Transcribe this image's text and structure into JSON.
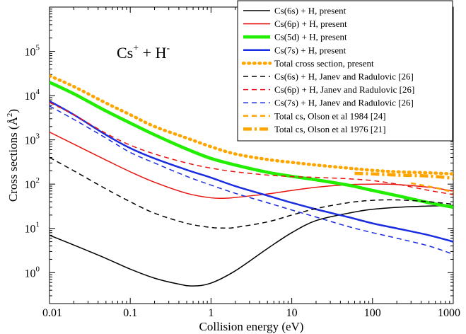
{
  "chart_data": {
    "type": "line",
    "title": "Cs⁺ + H⁻",
    "title_parts": {
      "base1": "Cs",
      "sup1": "+",
      "base2": " + H",
      "sup2": "-"
    },
    "xlabel": "Collision energy (eV)",
    "ylabel": "Cross sections (Å²)",
    "ylabel_parts": {
      "base": "Cross sections (Å",
      "sup": "2",
      "close": ")"
    },
    "xscale": "log",
    "yscale": "log",
    "xlim": [
      0.01,
      1000
    ],
    "ylim": [
      0.2,
      1000000
    ],
    "grid": false,
    "legend_position": "top-right",
    "x_ticks": [
      {
        "value": 0.01,
        "label": "0.01"
      },
      {
        "value": 0.1,
        "label": "0.1"
      },
      {
        "value": 1,
        "label": "1"
      },
      {
        "value": 10,
        "label": "10"
      },
      {
        "value": 100,
        "label": "100"
      },
      {
        "value": 1000,
        "label": "1000"
      }
    ],
    "y_ticks": [
      {
        "value": 1,
        "base": "10",
        "exp": "0"
      },
      {
        "value": 10,
        "base": "10",
        "exp": "1"
      },
      {
        "value": 100,
        "base": "10",
        "exp": "2"
      },
      {
        "value": 1000,
        "base": "10",
        "exp": "3"
      },
      {
        "value": 10000,
        "base": "10",
        "exp": "4"
      },
      {
        "value": 100000,
        "base": "10",
        "exp": "5"
      }
    ],
    "series": [
      {
        "name": "Cs(6s) + H, present",
        "color": "#000000",
        "dash": "solid",
        "width": "thin",
        "x": [
          0.01,
          0.02,
          0.05,
          0.1,
          0.2,
          0.4,
          0.6,
          1,
          2,
          5,
          10,
          20,
          50,
          100,
          300,
          1000
        ],
        "y": [
          7,
          4.2,
          2.1,
          1.2,
          0.75,
          0.55,
          0.5,
          0.58,
          1.1,
          3.5,
          8,
          15,
          22,
          27,
          31,
          33
        ]
      },
      {
        "name": "Cs(6p) + H, present",
        "color": "#e8140f",
        "dash": "solid",
        "width": "thin",
        "x": [
          0.01,
          0.02,
          0.05,
          0.1,
          0.2,
          0.5,
          1,
          1.5,
          2,
          5,
          10,
          20,
          50,
          100,
          200,
          500,
          1000
        ],
        "y": [
          1500,
          800,
          350,
          190,
          110,
          62,
          49,
          48,
          50,
          60,
          72,
          85,
          97,
          100,
          98,
          85,
          70
        ]
      },
      {
        "name": "Cs(5d) + H, present",
        "color": "#22ee00",
        "dash": "solid",
        "width": "thick",
        "x": [
          0.01,
          0.02,
          0.05,
          0.1,
          0.2,
          0.5,
          1,
          2,
          5,
          10,
          20,
          50,
          100,
          200,
          500,
          1000
        ],
        "y": [
          20000,
          11000,
          4500,
          2400,
          1300,
          620,
          380,
          270,
          185,
          150,
          125,
          95,
          72,
          55,
          38,
          30
        ]
      },
      {
        "name": "Cs(7s) + H, present",
        "color": "#1a2ce0",
        "dash": "solid",
        "width": "medium",
        "x": [
          0.01,
          0.02,
          0.05,
          0.1,
          0.2,
          0.5,
          1,
          2,
          5,
          10,
          20,
          50,
          100,
          200,
          500,
          1000
        ],
        "y": [
          7500,
          3700,
          1300,
          650,
          380,
          210,
          140,
          90,
          55,
          38,
          27,
          18,
          13,
          10,
          7,
          5
        ]
      },
      {
        "name": "Total cross section, present",
        "color": "#ffa500",
        "dash": "dotted",
        "width": "thick",
        "x": [
          0.01,
          0.02,
          0.05,
          0.1,
          0.2,
          0.5,
          1,
          2,
          5,
          10,
          20,
          50,
          100,
          200,
          500,
          1000
        ],
        "y": [
          28000,
          16000,
          6800,
          3700,
          2000,
          1100,
          700,
          480,
          360,
          310,
          270,
          230,
          205,
          190,
          180,
          170
        ]
      },
      {
        "name": "Cs(6s) + H, Janev and Radulovic [26]",
        "color": "#000000",
        "dash": "dashed",
        "width": "thin",
        "x": [
          0.01,
          0.02,
          0.05,
          0.1,
          0.2,
          0.5,
          1,
          1.5,
          2,
          5,
          10,
          20,
          50,
          100,
          200,
          500,
          1000
        ],
        "y": [
          400,
          200,
          78,
          40,
          22,
          13,
          10.5,
          10.2,
          10.5,
          14,
          20,
          28,
          38,
          43,
          44,
          40,
          35
        ]
      },
      {
        "name": "Cs(6p) + H, Janev and Radulovic [26]",
        "color": "#e8140f",
        "dash": "dashed",
        "width": "thin",
        "x": [
          0.01,
          0.02,
          0.05,
          0.1,
          0.2,
          0.5,
          1,
          2,
          5,
          10,
          20,
          50,
          100,
          200,
          500,
          1000
        ],
        "y": [
          7000,
          3700,
          1400,
          760,
          480,
          300,
          230,
          190,
          160,
          148,
          142,
          132,
          120,
          100,
          72,
          58
        ]
      },
      {
        "name": "Cs(7s) + H, Janev and Radulovic [26]",
        "color": "#1a2ce0",
        "dash": "dashed",
        "width": "thin",
        "x": [
          0.01,
          0.02,
          0.05,
          0.1,
          0.2,
          0.5,
          1,
          2,
          5,
          10,
          20,
          50,
          100,
          200,
          500,
          1000
        ],
        "y": [
          5800,
          2900,
          1100,
          520,
          300,
          150,
          95,
          62,
          38,
          26,
          18,
          11,
          8,
          6,
          4,
          2.6
        ]
      },
      {
        "name": "Total cs, Olson et al 1984 [24]",
        "color": "#ffa500",
        "dash": "dashed",
        "width": "medium",
        "x": [
          300,
          500,
          700,
          1000
        ],
        "y": [
          105,
          88,
          78,
          65
        ]
      },
      {
        "name": "Total cs, Olson et al 1976 [21]",
        "color": "#ffa500",
        "dash": "dashdot",
        "width": "thick",
        "x": [
          60,
          100,
          200,
          400,
          700,
          1000
        ],
        "y": [
          175,
          170,
          160,
          155,
          145,
          135
        ]
      }
    ]
  }
}
